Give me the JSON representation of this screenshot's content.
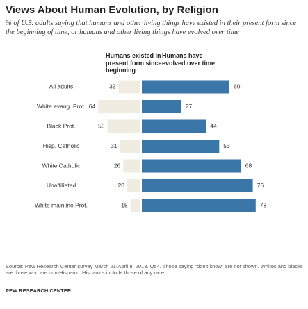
{
  "chart_data": {
    "type": "diverging-bar",
    "title": "Views About Human Evolution, by Religion",
    "subtitle": "% of U.S. adults saying that humans and other living things have existed in their present form since the beginning of time, or humans and other living things have evolved over time",
    "categories": [
      "All adults",
      "White evang. Prot.",
      "Black Prot.",
      "Hisp. Catholic",
      "White Catholic",
      "Unaffiliated",
      "White mainline Prot."
    ],
    "series": [
      {
        "name": "Humans existed in present form since beginning",
        "color": "#f1ece1",
        "values": [
          33,
          64,
          50,
          31,
          26,
          20,
          15
        ]
      },
      {
        "name": "Humans have evolved over time",
        "color": "#3a76a8",
        "values": [
          60,
          27,
          44,
          53,
          68,
          76,
          78
        ]
      }
    ],
    "source": "Source: Pew Research Center survey March 21-April 8, 2013. Q54. Those saying “don’t know” are not shown. Whites and blacks are those who are non-Hispanic. Hispanics include those of any race.",
    "credit": "PEW RESEARCH CENTER"
  }
}
